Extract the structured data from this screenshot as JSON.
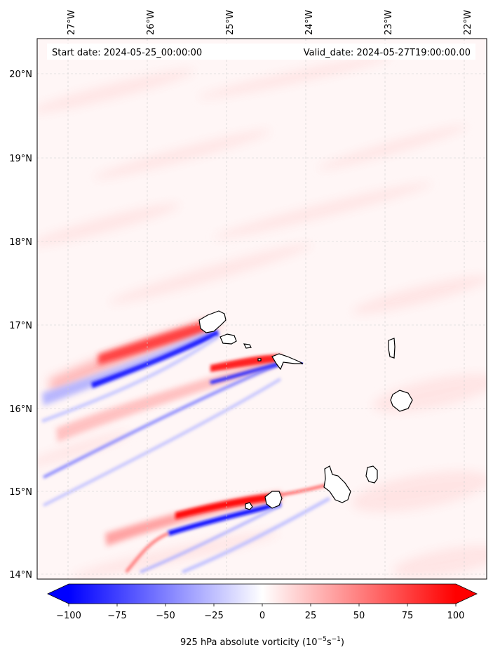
{
  "map": {
    "start_date": "Start date: 2024-05-25_00:00:00",
    "valid_date": "Valid_date: 2024-05-27T19:00:00.00",
    "lon_labels": [
      "27°W",
      "26°W",
      "25°W",
      "24°W",
      "23°W",
      "22°W"
    ],
    "lat_labels": [
      "20°N",
      "19°N",
      "18°N",
      "17°N",
      "16°N",
      "15°N",
      "14°N"
    ],
    "lon_range": [
      -27.35,
      -21.7
    ],
    "lat_range": [
      13.95,
      20.4
    ],
    "gridlines": true
  },
  "colorbar": {
    "ticks": [
      "−100",
      "−75",
      "−50",
      "−25",
      "0",
      "25",
      "50",
      "75",
      "100"
    ],
    "range": [
      -100,
      100
    ],
    "label_main": "925 hPa absolute vorticity (10",
    "label_exp1": "−5",
    "label_mid": "s",
    "label_exp2": "−1",
    "label_end": ")",
    "colormap": "bwr",
    "extend": "both"
  },
  "colors": {
    "positive": "#ff0000",
    "negative": "#0000ff",
    "neutral": "#ffffff",
    "background_field": "#fff5f5",
    "coastline": "#000000"
  }
}
